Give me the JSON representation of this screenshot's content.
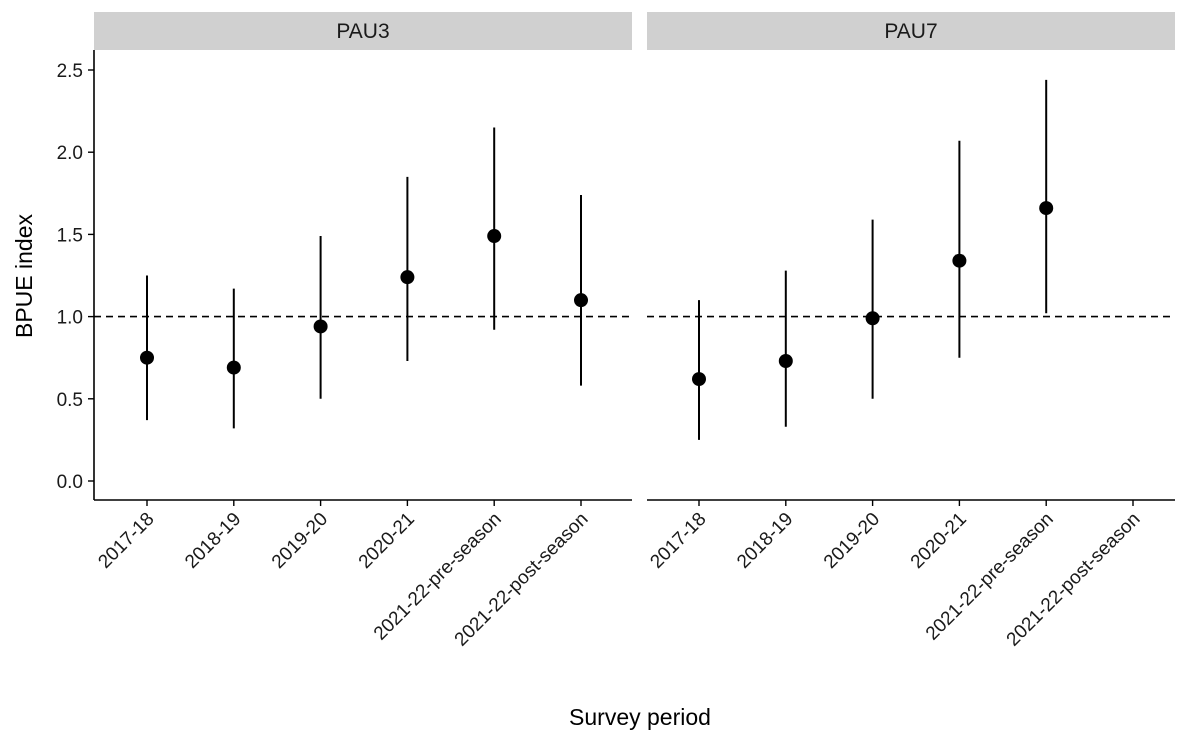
{
  "chart_data": {
    "type": "scatter",
    "variant": "point-range with error bars, faceted",
    "xlabel": "Survey period",
    "ylabel": "BPUE index",
    "ylim": [
      0,
      2.6
    ],
    "yticks": [
      "0.0",
      "0.5",
      "1.0",
      "1.5",
      "2.0",
      "2.5"
    ],
    "reference_line": {
      "y": 1.0,
      "style": "dashed"
    },
    "categories": [
      "2017-18",
      "2018-19",
      "2019-20",
      "2020-21",
      "2021-22-pre-season",
      "2021-22-post-season"
    ],
    "grid": false,
    "legend": "none",
    "colors": {
      "points": "#000000",
      "strip_bg": "#d0d0d0",
      "axis": "#000000"
    },
    "panels": [
      {
        "name": "PAU3",
        "points": [
          {
            "x": "2017-18",
            "y": 0.75,
            "lower": 0.37,
            "upper": 1.25
          },
          {
            "x": "2018-19",
            "y": 0.69,
            "lower": 0.32,
            "upper": 1.17
          },
          {
            "x": "2019-20",
            "y": 0.94,
            "lower": 0.5,
            "upper": 1.49
          },
          {
            "x": "2020-21",
            "y": 1.24,
            "lower": 0.73,
            "upper": 1.85
          },
          {
            "x": "2021-22-pre-season",
            "y": 1.49,
            "lower": 0.92,
            "upper": 2.15
          },
          {
            "x": "2021-22-post-season",
            "y": 1.1,
            "lower": 0.58,
            "upper": 1.74
          }
        ]
      },
      {
        "name": "PAU7",
        "points": [
          {
            "x": "2017-18",
            "y": 0.62,
            "lower": 0.25,
            "upper": 1.1
          },
          {
            "x": "2018-19",
            "y": 0.73,
            "lower": 0.33,
            "upper": 1.28
          },
          {
            "x": "2019-20",
            "y": 0.99,
            "lower": 0.5,
            "upper": 1.59
          },
          {
            "x": "2020-21",
            "y": 1.34,
            "lower": 0.75,
            "upper": 2.07
          },
          {
            "x": "2021-22-pre-season",
            "y": 1.66,
            "lower": 1.02,
            "upper": 2.44
          }
        ]
      }
    ]
  }
}
